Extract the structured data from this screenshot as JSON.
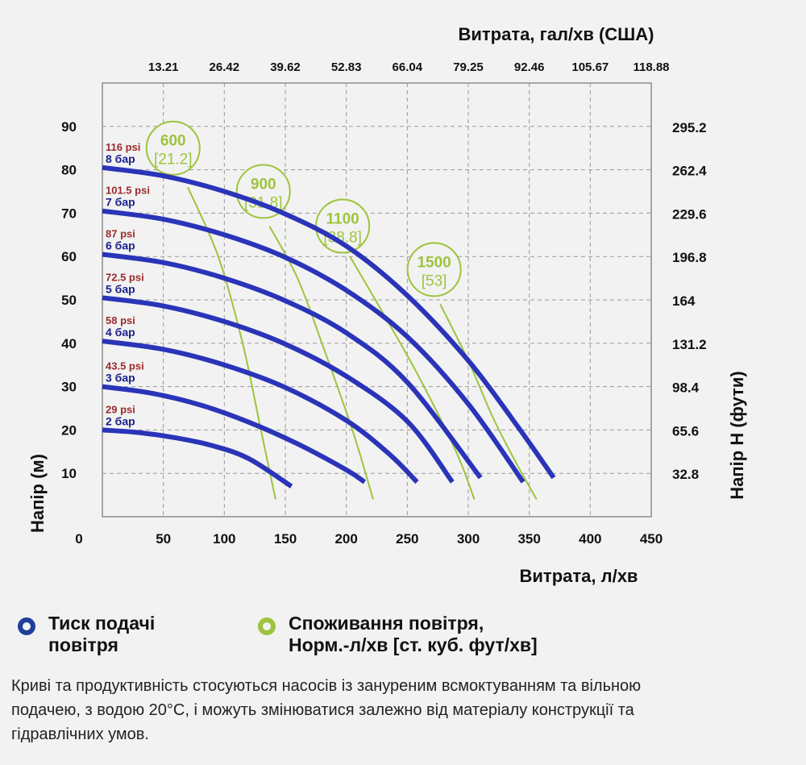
{
  "chart_data": {
    "type": "line",
    "title_top": "Витрата, гал/хв (США)",
    "xlabel": "Витрата, л/хв",
    "ylabel_left": "Напір (м)",
    "ylabel_right": "Напір H (фути)",
    "xlim": [
      0,
      450
    ],
    "ylim": [
      0,
      100
    ],
    "x_ticks": [
      0,
      50,
      100,
      150,
      200,
      250,
      300,
      350,
      400,
      450
    ],
    "y_ticks": [
      10,
      20,
      30,
      40,
      50,
      60,
      70,
      80,
      90
    ],
    "x_top_ticks": [
      "13.21",
      "26.42",
      "39.62",
      "52.83",
      "66.04",
      "79.25",
      "92.46",
      "105.67",
      "118.88"
    ],
    "y_right_ticks": [
      "32.8",
      "65.6",
      "98.4",
      "131.2",
      "164",
      "196.8",
      "229.6",
      "262.4",
      "295.2"
    ],
    "colors": {
      "pressure": "#2a34b8",
      "air": "#9dc43c",
      "psi": "#9b2a2a",
      "bar": "#1a1f8a",
      "grid": "#999999"
    },
    "pressure_series": [
      {
        "psi": "29 psi",
        "bar": "2 бар",
        "points": [
          [
            0,
            20
          ],
          [
            30,
            19.4
          ],
          [
            60,
            18.2
          ],
          [
            90,
            16.4
          ],
          [
            120,
            13.4
          ],
          [
            155,
            7
          ]
        ]
      },
      {
        "psi": "43.5 psi",
        "bar": "3 бар",
        "points": [
          [
            0,
            30
          ],
          [
            40,
            28.5
          ],
          [
            80,
            25.8
          ],
          [
            120,
            21.8
          ],
          [
            160,
            16.8
          ],
          [
            200,
            10.8
          ],
          [
            215,
            8
          ]
        ]
      },
      {
        "psi": "58 psi",
        "bar": "4 бар",
        "points": [
          [
            0,
            40.5
          ],
          [
            50,
            38.6
          ],
          [
            100,
            35
          ],
          [
            150,
            29.8
          ],
          [
            200,
            22.2
          ],
          [
            235,
            14.5
          ],
          [
            258,
            8
          ]
        ]
      },
      {
        "psi": "72.5 psi",
        "bar": "5 бар",
        "points": [
          [
            0,
            50.5
          ],
          [
            50,
            48.6
          ],
          [
            100,
            45
          ],
          [
            150,
            39.8
          ],
          [
            200,
            32.4
          ],
          [
            250,
            22
          ],
          [
            287,
            8
          ]
        ]
      },
      {
        "psi": "87 psi",
        "bar": "6 бар",
        "points": [
          [
            0,
            60.5
          ],
          [
            50,
            58.6
          ],
          [
            100,
            55
          ],
          [
            150,
            49.8
          ],
          [
            200,
            42.4
          ],
          [
            250,
            31
          ],
          [
            310,
            9
          ]
        ]
      },
      {
        "psi": "101.5 psi",
        "bar": "7 бар",
        "points": [
          [
            0,
            70.5
          ],
          [
            50,
            68.6
          ],
          [
            100,
            65
          ],
          [
            150,
            59.8
          ],
          [
            200,
            52.2
          ],
          [
            250,
            41.5
          ],
          [
            300,
            26
          ],
          [
            345,
            8
          ]
        ]
      },
      {
        "psi": "116 psi",
        "bar": "8 бар",
        "points": [
          [
            0,
            80.5
          ],
          [
            50,
            78.6
          ],
          [
            100,
            75
          ],
          [
            150,
            69.8
          ],
          [
            200,
            62.4
          ],
          [
            250,
            51
          ],
          [
            300,
            36
          ],
          [
            340,
            21
          ],
          [
            370,
            9
          ]
        ]
      }
    ],
    "air_series": [
      {
        "value": "600",
        "cfm": "[21.2]",
        "label_at": [
          58,
          85
        ],
        "points": [
          [
            70,
            76
          ],
          [
            95,
            60
          ],
          [
            115,
            40
          ],
          [
            130,
            20
          ],
          [
            142,
            4
          ]
        ]
      },
      {
        "value": "900",
        "cfm": "[31.8]",
        "label_at": [
          132,
          75
        ],
        "points": [
          [
            137,
            67
          ],
          [
            160,
            55
          ],
          [
            180,
            40
          ],
          [
            205,
            20
          ],
          [
            222,
            4
          ]
        ]
      },
      {
        "value": "1100",
        "cfm": "[38.8]",
        "label_at": [
          197,
          67
        ],
        "points": [
          [
            203,
            60
          ],
          [
            230,
            47
          ],
          [
            260,
            32
          ],
          [
            290,
            15
          ],
          [
            305,
            4
          ]
        ]
      },
      {
        "value": "1500",
        "cfm": "[53]",
        "label_at": [
          272,
          57
        ],
        "points": [
          [
            277,
            49
          ],
          [
            300,
            36
          ],
          [
            320,
            23
          ],
          [
            340,
            12
          ],
          [
            356,
            4
          ]
        ]
      }
    ]
  },
  "legend": {
    "pressure_line1": "Тиск подачі",
    "pressure_line2": "повітря",
    "air_line1": "Споживання повітря,",
    "air_line2": "Норм.-л/хв [ст. куб. фут/хв]"
  },
  "footnote": {
    "line1": "Криві та продуктивність стосуються насосів із зануреним всмоктуванням та вільною",
    "line2": "подачею, з водою 20°C, і можуть змінюватися залежно від матеріалу конструкції та",
    "line3": "гідравлічних умов."
  }
}
